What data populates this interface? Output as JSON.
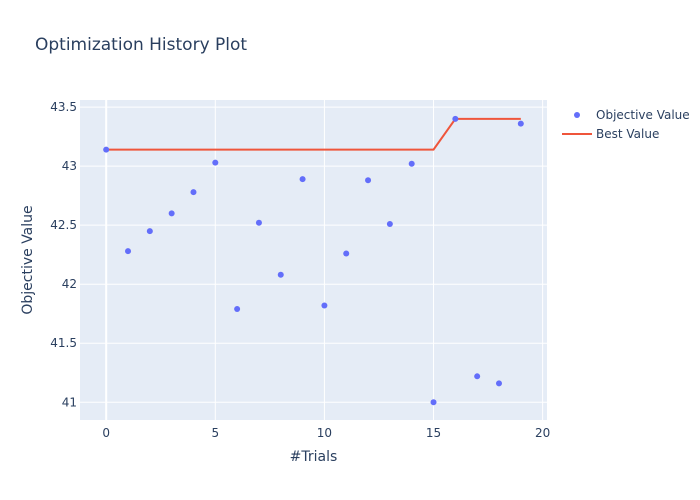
{
  "chart_data": {
    "type": "scatter",
    "title": "Optimization History Plot",
    "xlabel": "#Trials",
    "ylabel": "Objective Value",
    "xlim": [
      -1.2,
      20.2
    ],
    "ylim": [
      40.85,
      43.56
    ],
    "xticks": [
      0,
      5,
      10,
      15,
      20
    ],
    "xtick_labels": [
      "0",
      "5",
      "10",
      "15",
      "20"
    ],
    "yticks": [
      41,
      41.5,
      42,
      42.5,
      43,
      43.5
    ],
    "ytick_labels": [
      "41",
      "41.5",
      "42",
      "42.5",
      "43",
      "43.5"
    ],
    "grid": true,
    "legend_position": "top-right",
    "colors": {
      "plot_bg": "#e5ecf6",
      "grid": "#ffffff",
      "text": "#2a3f5f",
      "objective": "#636efa",
      "best": "#ef553b"
    },
    "series": [
      {
        "name": "Objective Value",
        "kind": "markers",
        "x": [
          0,
          1,
          2,
          3,
          4,
          5,
          6,
          7,
          8,
          9,
          10,
          11,
          12,
          13,
          14,
          15,
          16,
          17,
          18,
          19
        ],
        "y": [
          43.14,
          42.28,
          42.45,
          42.6,
          42.78,
          43.03,
          41.79,
          42.52,
          42.08,
          42.89,
          41.82,
          42.26,
          42.88,
          42.51,
          43.02,
          41.0,
          43.4,
          41.22,
          41.16,
          43.36
        ]
      },
      {
        "name": "Best Value",
        "kind": "line",
        "x": [
          0,
          1,
          2,
          3,
          4,
          5,
          6,
          7,
          8,
          9,
          10,
          11,
          12,
          13,
          14,
          15,
          16,
          17,
          18,
          19
        ],
        "y": [
          43.14,
          43.14,
          43.14,
          43.14,
          43.14,
          43.14,
          43.14,
          43.14,
          43.14,
          43.14,
          43.14,
          43.14,
          43.14,
          43.14,
          43.14,
          43.14,
          43.4,
          43.4,
          43.4,
          43.4
        ]
      }
    ]
  }
}
